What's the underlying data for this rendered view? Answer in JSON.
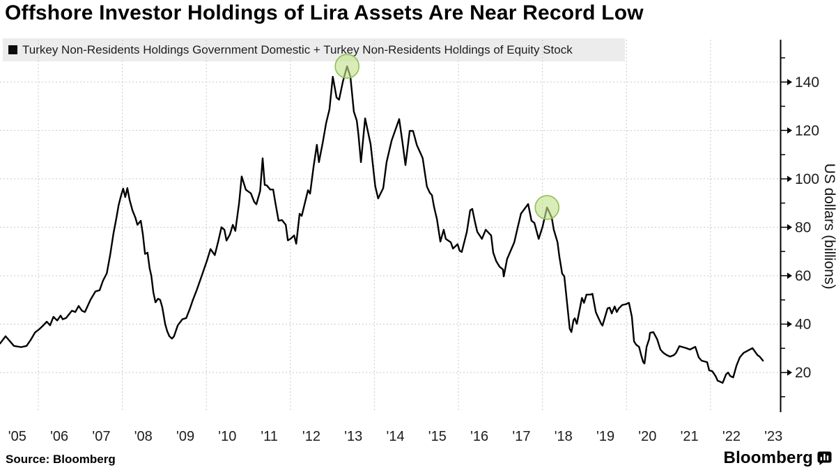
{
  "title": "Offshore Investor Holdings of Lira Assets Are Near Record Low",
  "legend": {
    "swatch_icon": "black-square",
    "label": "Turkey Non-Residents Holdings Government Domestic + Turkey Non-Residents Holdings of Equity Stock"
  },
  "source_note": "Source: Bloomberg",
  "brand": {
    "name": "Bloomberg",
    "icon": "bloomberg-chart-bubble-icon"
  },
  "colors": {
    "line": "#000000",
    "grid": "#c9c9c9",
    "legend_bg": "#ececec",
    "highlight_fill": "#c3e08d",
    "highlight_stroke": "#8fbf52",
    "axis": "#000000",
    "text": "#1c1c1c"
  },
  "y_axis": {
    "title": "US dollars (billions)",
    "major_ticks": [
      20,
      40,
      60,
      80,
      100,
      120,
      140
    ],
    "minor_ticks": [
      10,
      30,
      50,
      70,
      90,
      110,
      130,
      150
    ],
    "side": "right"
  },
  "x_axis": {
    "labels": [
      "'05",
      "'06",
      "'07",
      "'08",
      "'09",
      "'10",
      "'11",
      "'12",
      "'13",
      "'14",
      "'15",
      "'16",
      "'17",
      "'18",
      "'19",
      "'20",
      "'21",
      "'22",
      "'23"
    ],
    "label_years": [
      2005.5,
      2006.5,
      2007.5,
      2008.5,
      2009.5,
      2010.5,
      2011.5,
      2012.5,
      2013.5,
      2014.5,
      2015.5,
      2016.5,
      2017.5,
      2018.5,
      2019.5,
      2020.5,
      2021.5,
      2022.5,
      2023.5
    ],
    "gridline_years": [
      2006,
      2008,
      2010,
      2012,
      2014,
      2016,
      2018,
      2020,
      2022
    ]
  },
  "chart_data": {
    "type": "line",
    "title": "Offshore Investor Holdings of Lira Assets Are Near Record Low",
    "ylabel": "US dollars (billions)",
    "x_range": [
      2005.05,
      2023.6
    ],
    "y_axis_span": [
      3.5,
      158
    ],
    "grid": "dashed",
    "legend_position": "top-left",
    "series": [
      {
        "name": "Turkey Non-Residents Holdings Government Domestic + Turkey Non-Residents Holdings of Equity Stock",
        "x": [
          2005.09,
          2005.22,
          2005.32,
          2005.42,
          2005.59,
          2005.72,
          2005.82,
          2005.92,
          2006.03,
          2006.12,
          2006.2,
          2006.28,
          2006.36,
          2006.45,
          2006.53,
          2006.58,
          2006.66,
          2006.8,
          2006.88,
          2006.96,
          2007.04,
          2007.11,
          2007.24,
          2007.36,
          2007.46,
          2007.54,
          2007.63,
          2007.71,
          2007.79,
          2007.86,
          2007.91,
          2007.96,
          2008.02,
          2008.07,
          2008.12,
          2008.17,
          2008.24,
          2008.31,
          2008.36,
          2008.44,
          2008.49,
          2008.54,
          2008.6,
          2008.65,
          2008.69,
          2008.74,
          2008.79,
          2008.85,
          2008.9,
          2008.95,
          2009.02,
          2009.07,
          2009.12,
          2009.18,
          2009.23,
          2009.32,
          2009.43,
          2009.52,
          2009.6,
          2009.68,
          2009.77,
          2009.85,
          2009.93,
          2010.01,
          2010.1,
          2010.2,
          2010.28,
          2010.36,
          2010.43,
          2010.48,
          2010.56,
          2010.63,
          2010.69,
          2010.78,
          2010.84,
          2010.94,
          2011.06,
          2011.14,
          2011.19,
          2011.28,
          2011.34,
          2011.39,
          2011.44,
          2011.52,
          2011.59,
          2011.64,
          2011.72,
          2011.8,
          2011.89,
          2011.94,
          2012.0,
          2012.09,
          2012.14,
          2012.22,
          2012.27,
          2012.42,
          2012.47,
          2012.55,
          2012.63,
          2012.68,
          2012.77,
          2012.85,
          2012.93,
          2013.01,
          2013.1,
          2013.16,
          2013.25,
          2013.35,
          2013.43,
          2013.51,
          2013.58,
          2013.62,
          2013.68,
          2013.78,
          2013.91,
          2014.02,
          2014.09,
          2014.21,
          2014.29,
          2014.41,
          2014.59,
          2014.67,
          2014.74,
          2014.84,
          2014.92,
          2015.01,
          2015.15,
          2015.25,
          2015.32,
          2015.37,
          2015.42,
          2015.49,
          2015.57,
          2015.65,
          2015.7,
          2015.82,
          2015.87,
          2015.98,
          2016.03,
          2016.08,
          2016.2,
          2016.28,
          2016.33,
          2016.4,
          2016.45,
          2016.56,
          2016.65,
          2016.78,
          2016.83,
          2016.9,
          2016.98,
          2017.06,
          2017.08,
          2017.16,
          2017.33,
          2017.41,
          2017.49,
          2017.66,
          2017.74,
          2017.81,
          2017.91,
          2018.0,
          2018.11,
          2018.22,
          2018.27,
          2018.36,
          2018.4,
          2018.47,
          2018.52,
          2018.56,
          2018.65,
          2018.69,
          2018.74,
          2018.77,
          2018.82,
          2018.94,
          2018.99,
          2019.05,
          2019.14,
          2019.19,
          2019.27,
          2019.32,
          2019.4,
          2019.43,
          2019.55,
          2019.6,
          2019.65,
          2019.72,
          2019.77,
          2019.82,
          2019.9,
          2019.98,
          2020.06,
          2020.13,
          2020.18,
          2020.23,
          2020.3,
          2020.35,
          2020.4,
          2020.43,
          2020.48,
          2020.54,
          2020.56,
          2020.64,
          2020.73,
          2020.81,
          2020.88,
          2020.96,
          2021.04,
          2021.13,
          2021.18,
          2021.26,
          2021.42,
          2021.51,
          2021.64,
          2021.72,
          2021.79,
          2021.92,
          2021.97,
          2022.04,
          2022.12,
          2022.17,
          2022.22,
          2022.29,
          2022.37,
          2022.42,
          2022.47,
          2022.54,
          2022.62,
          2022.7,
          2022.79,
          2023.0,
          2023.12,
          2023.17,
          2023.25
        ],
        "y": [
          32,
          35,
          33,
          31,
          30.5,
          31,
          33.5,
          36.5,
          38,
          39.5,
          41,
          39.5,
          43,
          41.5,
          43.5,
          42,
          42.5,
          45.5,
          45,
          47.5,
          45.5,
          45,
          50,
          53.5,
          54,
          58,
          61,
          68.5,
          77.5,
          84,
          89,
          92.5,
          96,
          92.5,
          96.2,
          91.5,
          87,
          84,
          81,
          82.7,
          77,
          69,
          69.5,
          63,
          60,
          53,
          49,
          50.5,
          50,
          47,
          40,
          37,
          35,
          34,
          35,
          39.5,
          42,
          42.5,
          46,
          50,
          54,
          58,
          62,
          66,
          71,
          68.5,
          74,
          80,
          79,
          74.5,
          77,
          81,
          78.5,
          90,
          101,
          95.5,
          94,
          90.5,
          89.5,
          95,
          108.5,
          97.5,
          97.3,
          95.6,
          95.6,
          90.4,
          82.7,
          83,
          81,
          74.6,
          75.2,
          76.6,
          73.2,
          85.6,
          84.7,
          95.3,
          93.9,
          104.8,
          114.1,
          106.9,
          114.9,
          123,
          128.7,
          142.2,
          133.6,
          132.7,
          140.2,
          146.5,
          142.2,
          127.8,
          124.1,
          118.3,
          106.9,
          125,
          114.3,
          97,
          91.9,
          96.2,
          106.9,
          115.8,
          124.7,
          114.9,
          105.7,
          119.8,
          119.8,
          114,
          108.6,
          96.8,
          94.2,
          93.3,
          88.5,
          83.3,
          74.1,
          79,
          75.2,
          73.8,
          71.2,
          73,
          70.3,
          69.8,
          78.1,
          87,
          87.6,
          81.8,
          78.1,
          75.2,
          79,
          76.6,
          69.5,
          66,
          63.7,
          62.6,
          59.7,
          66.9,
          73.8,
          79.8,
          85.6,
          89.6,
          82.7,
          81.8,
          75.2,
          80,
          88.2,
          84.1,
          79,
          73.8,
          68.3,
          60.9,
          59.7,
          53.1,
          38.1,
          36.7,
          41.6,
          42.4,
          40.1,
          50.8,
          48.8,
          52.2,
          52.2,
          52.5,
          45,
          43,
          40.1,
          39.4,
          46.5,
          46.8,
          44.4,
          47.3,
          45,
          46.5,
          47.9,
          48.2,
          48.8,
          43,
          32.9,
          31.5,
          30.6,
          27.2,
          24.3,
          23.7,
          30.6,
          33.8,
          36.4,
          36.7,
          33.8,
          29.5,
          28.1,
          27.2,
          26.6,
          27.2,
          28.1,
          30.9,
          30.1,
          29.5,
          30.6,
          26.3,
          24.9,
          24.3,
          20.9,
          20.6,
          18.6,
          16.6,
          16.3,
          15.7,
          19.2,
          20,
          18.6,
          18,
          22.9,
          26.3,
          28.1,
          30.1,
          27.2,
          26.6,
          24.9
        ]
      }
    ],
    "highlight_markers": [
      {
        "x": 2013.35,
        "y": 146.5
      },
      {
        "x": 2018.11,
        "y": 88.2
      }
    ]
  }
}
